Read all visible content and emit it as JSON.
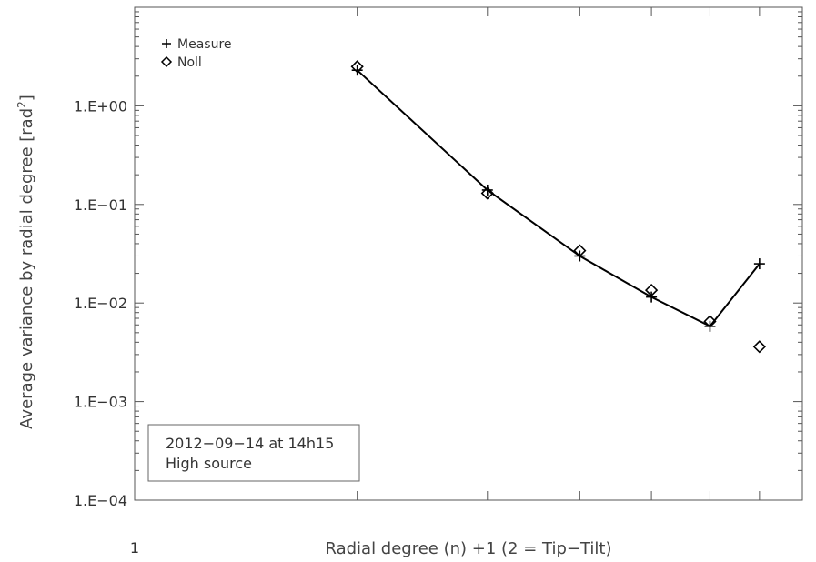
{
  "chart_data": {
    "type": "line",
    "xlabel": "Radial degree (n) +1 (2 = Tip−Tilt)",
    "ylabel": "Average variance by radial degree [rad²]",
    "xscale": "log",
    "yscale": "log",
    "xlim": [
      1,
      8
    ],
    "ylim": [
      0.0001,
      10
    ],
    "x_tick_labels": [
      {
        "value": 1,
        "label": "1"
      }
    ],
    "y_tick_labels": [
      {
        "value": 0.0001,
        "label": "1.E−04"
      },
      {
        "value": 0.001,
        "label": "1.E−03"
      },
      {
        "value": 0.01,
        "label": "1.E−02"
      },
      {
        "value": 0.1,
        "label": "1.E−01"
      },
      {
        "value": 1,
        "label": "1.E+00"
      }
    ],
    "grid": false,
    "legend_position": "top-left",
    "series": [
      {
        "name": "Measure",
        "marker": "plus",
        "line": true,
        "x": [
          2,
          3,
          4,
          5,
          6,
          7
        ],
        "y": [
          2.3,
          0.14,
          0.03,
          0.0115,
          0.0058,
          0.025
        ]
      },
      {
        "name": "Noll",
        "marker": "diamond",
        "line": false,
        "x": [
          2,
          3,
          4,
          5,
          6,
          7
        ],
        "y": [
          2.5,
          0.13,
          0.034,
          0.0135,
          0.0065,
          0.0036
        ]
      }
    ],
    "annotation_lines": [
      "2012−09−14 at 14h15",
      "High source"
    ]
  },
  "legend": {
    "measure_label": "Measure",
    "noll_label": "Noll"
  },
  "note": {
    "line1": "2012−09−14 at 14h15",
    "line2": "High source"
  },
  "colors": {
    "line": "#000000",
    "axis": "#555555",
    "text": "#333333"
  }
}
